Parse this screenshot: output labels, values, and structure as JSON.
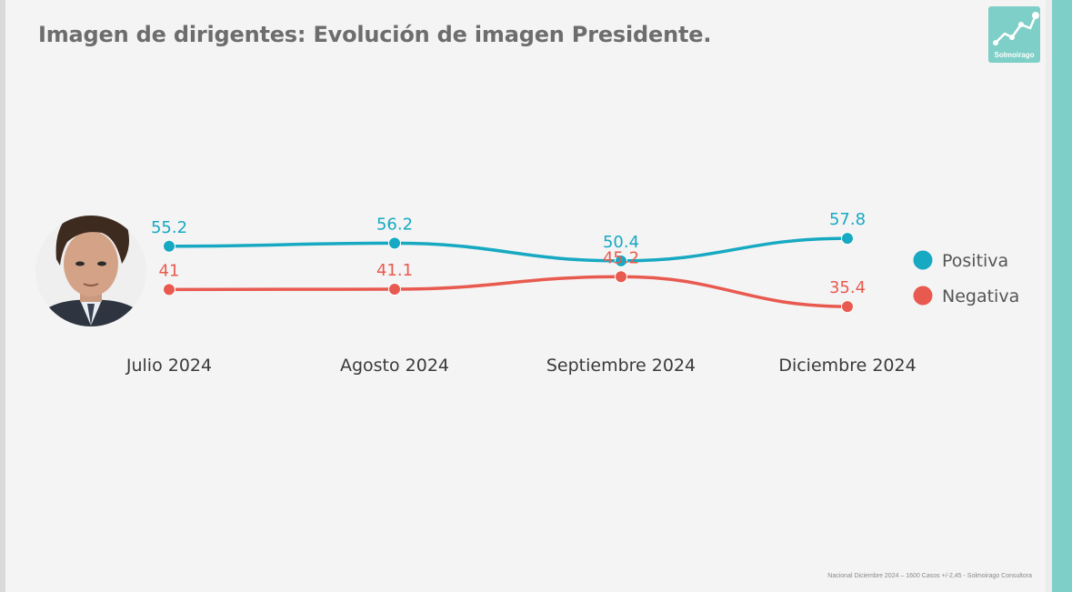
{
  "title": "Imagen de dirigentes: Evolución de imagen Presidente.",
  "logo": {
    "text": "Solmoirago"
  },
  "footer": "Nacional Diciembre 2024 – 1600 Casos +/-2,45 - Solmoirago Consultora",
  "colors": {
    "positiva": "#17a9c2",
    "negativa": "#e85a4f",
    "accent": "#7ecfc7"
  },
  "chart_data": {
    "type": "line",
    "categories": [
      "Julio 2024",
      "Agosto 2024",
      "Septiembre 2024",
      "Diciembre 2024"
    ],
    "series": [
      {
        "name": "Positiva",
        "values": [
          55.2,
          56.2,
          50.4,
          57.8
        ],
        "labels": [
          "55.2",
          "56.2",
          "50.4",
          "57.8"
        ]
      },
      {
        "name": "Negativa",
        "values": [
          41,
          41.1,
          45.2,
          35.4
        ],
        "labels": [
          "41",
          "41.1",
          "45.2",
          "35.4"
        ]
      }
    ],
    "legend": "right",
    "grid": false
  }
}
